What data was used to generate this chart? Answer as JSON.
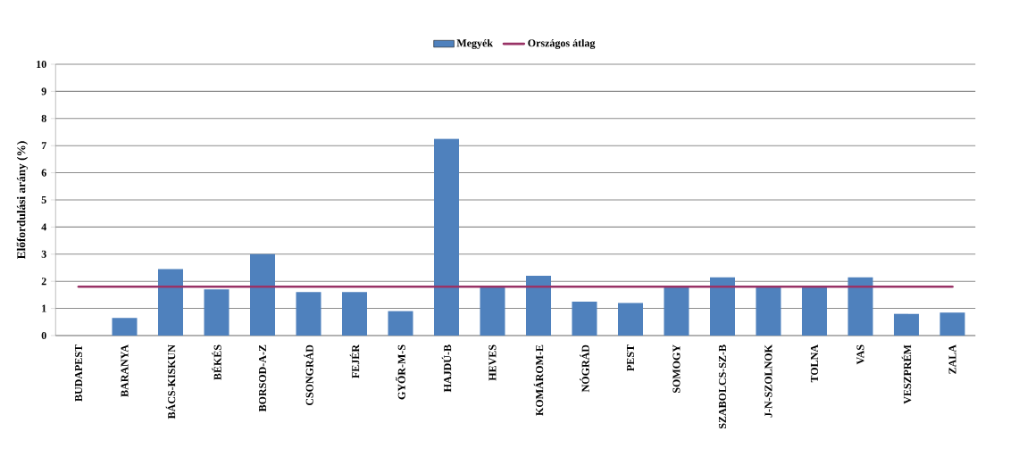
{
  "chart_data": {
    "type": "bar",
    "ylabel": "Előfordulási arány (%)",
    "categories": [
      "BUDAPEST",
      "BARANYA",
      "BÁCS-KISKUN",
      "BÉKÉS",
      "BORSOD-A-Z",
      "CSONGRÁD",
      "FEJÉR",
      "GYŐR-M-S",
      "HAJDÚ-B",
      "HEVES",
      "KOMÁROM-E",
      "NÓGRÁD",
      "PEST",
      "SOMOGY",
      "SZABOLCS-SZ-B",
      "J-N-SZOLNOK",
      "TOLNA",
      "VAS",
      "VESZPRÉM",
      "ZALA"
    ],
    "series": [
      {
        "name": "Megyék",
        "color": "#4f81bd",
        "values": [
          0,
          0.65,
          2.45,
          1.7,
          3.0,
          1.6,
          1.6,
          0.9,
          7.25,
          1.8,
          2.2,
          1.25,
          1.2,
          1.8,
          2.15,
          1.8,
          1.8,
          2.15,
          0.8,
          0.85
        ]
      },
      {
        "name": "Országos átlag",
        "type": "line",
        "color": "#993366",
        "values": [
          1.8,
          1.8,
          1.8,
          1.8,
          1.8,
          1.8,
          1.8,
          1.8,
          1.8,
          1.8,
          1.8,
          1.8,
          1.8,
          1.8,
          1.8,
          1.8,
          1.8,
          1.8,
          1.8,
          1.8
        ]
      }
    ],
    "ylim": [
      0,
      10
    ],
    "yticks": [
      0,
      1,
      2,
      3,
      4,
      5,
      6,
      7,
      8,
      9,
      10
    ],
    "grid": "y",
    "legend": "top"
  }
}
